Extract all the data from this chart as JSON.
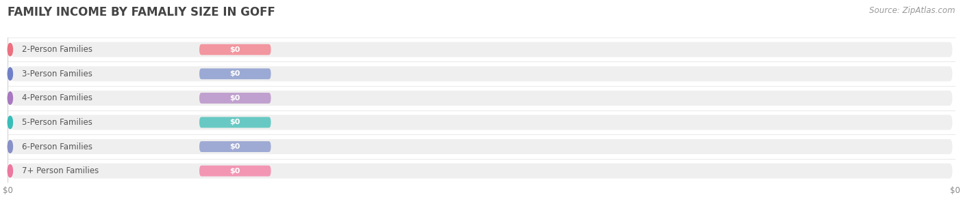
{
  "title": "FAMILY INCOME BY FAMALIY SIZE IN GOFF",
  "source": "Source: ZipAtlas.com",
  "categories": [
    "2-Person Families",
    "3-Person Families",
    "4-Person Families",
    "5-Person Families",
    "6-Person Families",
    "7+ Person Families"
  ],
  "values": [
    0,
    0,
    0,
    0,
    0,
    0
  ],
  "bar_colors": [
    "#F2969F",
    "#9BAAD4",
    "#C0A0CE",
    "#68C9C4",
    "#9FAAD4",
    "#F296B4"
  ],
  "dot_colors": [
    "#EC7080",
    "#7080C8",
    "#A878C0",
    "#38BDB8",
    "#8890C8",
    "#EC78A0"
  ],
  "background_color": "#ffffff",
  "bar_bg_color": "#efefef",
  "title_fontsize": 12,
  "source_fontsize": 8.5,
  "label_fontsize": 8.5,
  "tick_fontsize": 8.5
}
